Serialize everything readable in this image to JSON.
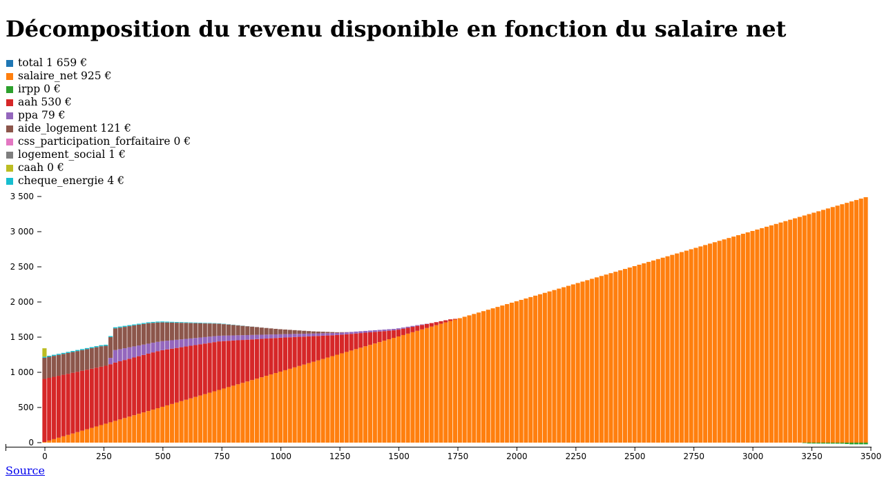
{
  "title": "Décomposition du revenu disponible en fonction du salaire net",
  "source_link": "Source",
  "chart_data": {
    "type": "bar",
    "stacked": true,
    "x_ticks": [
      0,
      250,
      500,
      750,
      1000,
      1250,
      1500,
      1750,
      2000,
      2250,
      2500,
      2750,
      3000,
      3250,
      3500
    ],
    "x_tick_labels": [
      "0",
      "250",
      "500",
      "750",
      "1000",
      "1250",
      "1500",
      "1750",
      "2000",
      "2250",
      "2500",
      "2750",
      "3000",
      "3250",
      "3500"
    ],
    "y_ticks": [
      0,
      500,
      1000,
      1500,
      2000,
      2500,
      3000,
      3500
    ],
    "y_tick_labels": [
      "0",
      "500",
      "1 000",
      "1 500",
      "2 000",
      "2 500",
      "3 000",
      "3 500"
    ],
    "ylim": [
      0,
      3500
    ],
    "xlim": [
      0,
      3500
    ],
    "legend": [
      {
        "key": "total",
        "label": "total 1 659 €",
        "color": "#1f77b4"
      },
      {
        "key": "salaire_net",
        "label": "salaire_net 925 €",
        "color": "#ff7f0e"
      },
      {
        "key": "irpp",
        "label": "irpp 0 €",
        "color": "#2ca02c"
      },
      {
        "key": "aah",
        "label": "aah 530 €",
        "color": "#d62728"
      },
      {
        "key": "ppa",
        "label": "ppa 79 €",
        "color": "#9467bd"
      },
      {
        "key": "aide_logement",
        "label": "aide_logement 121 €",
        "color": "#8c564b"
      },
      {
        "key": "css_participation_forfaitaire",
        "label": "css_participation_forfaitaire 0 €",
        "color": "#e377c2"
      },
      {
        "key": "logement_social",
        "label": "logement_social 1 €",
        "color": "#7f7f7f"
      },
      {
        "key": "caah",
        "label": "caah 0 €",
        "color": "#bcbd22"
      },
      {
        "key": "cheque_energie",
        "label": "cheque_energie 4 €",
        "color": "#17becf"
      }
    ],
    "bin_width": 20,
    "series": {
      "salaire_net": {
        "from": 0,
        "to": 3500
      },
      "aah": [
        [
          0,
          900
        ],
        [
          250,
          830
        ],
        [
          280,
          820
        ],
        [
          300,
          830
        ],
        [
          500,
          810
        ],
        [
          750,
          690
        ],
        [
          1000,
          490
        ],
        [
          1250,
          280
        ],
        [
          1500,
          100
        ],
        [
          1740,
          20
        ],
        [
          1760,
          0
        ]
      ],
      "ppa": [
        [
          0,
          0
        ],
        [
          280,
          0
        ],
        [
          300,
          180
        ],
        [
          500,
          130
        ],
        [
          750,
          80
        ],
        [
          1000,
          50
        ],
        [
          1250,
          30
        ],
        [
          1500,
          20
        ],
        [
          1600,
          10
        ],
        [
          1650,
          0
        ]
      ],
      "aide_logement": [
        [
          0,
          300
        ],
        [
          250,
          290
        ],
        [
          280,
          280
        ],
        [
          300,
          310
        ],
        [
          450,
          290
        ],
        [
          500,
          270
        ],
        [
          750,
          170
        ],
        [
          1000,
          75
        ],
        [
          1150,
          30
        ],
        [
          1300,
          0
        ]
      ],
      "caah": [
        [
          0,
          120
        ],
        [
          10,
          120
        ],
        [
          20,
          0
        ]
      ],
      "cheque_energie": [
        [
          0,
          15
        ],
        [
          250,
          15
        ],
        [
          500,
          12
        ],
        [
          600,
          8
        ],
        [
          800,
          3
        ],
        [
          900,
          0
        ]
      ],
      "logement_social": [
        [
          0,
          0
        ],
        [
          400,
          1
        ],
        [
          700,
          3
        ],
        [
          900,
          2
        ],
        [
          1000,
          0
        ]
      ],
      "irpp": [
        [
          0,
          0
        ],
        [
          3220,
          0
        ],
        [
          3240,
          12
        ],
        [
          3400,
          15
        ],
        [
          3420,
          24
        ],
        [
          3500,
          24
        ]
      ]
    }
  }
}
